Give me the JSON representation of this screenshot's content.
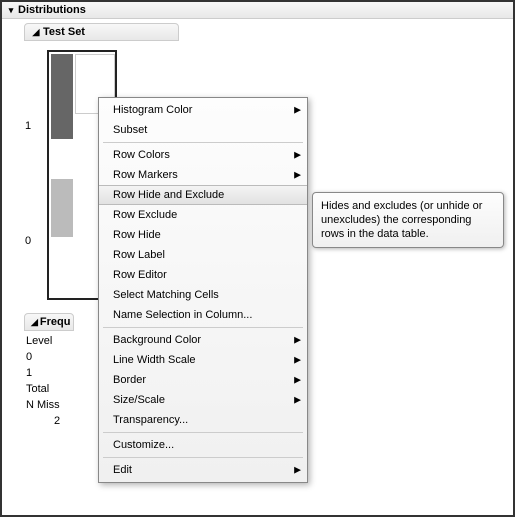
{
  "panel": {
    "title": "Distributions",
    "sub_title": "Test Set"
  },
  "chart": {
    "y_labels": [
      "1",
      "0"
    ],
    "bar_color_top": "#666666",
    "bar_color_selected": "#bbbbbb",
    "border_color": "#222222"
  },
  "freq": {
    "header": "Frequ",
    "level_label": "Level",
    "rows": [
      "0",
      "1",
      "Total",
      "N Miss"
    ],
    "value": "2"
  },
  "menu": {
    "items": [
      {
        "label": "Histogram Color",
        "sub": true
      },
      {
        "label": "Subset"
      },
      {
        "sep": true
      },
      {
        "label": "Row Colors",
        "sub": true
      },
      {
        "label": "Row Markers",
        "sub": true
      },
      {
        "label": "Row Hide and Exclude",
        "highlight": true
      },
      {
        "label": "Row Exclude"
      },
      {
        "label": "Row Hide"
      },
      {
        "label": "Row Label"
      },
      {
        "label": "Row Editor"
      },
      {
        "label": "Select Matching Cells"
      },
      {
        "label": "Name Selection in Column..."
      },
      {
        "sep": true
      },
      {
        "label": "Background Color",
        "sub": true
      },
      {
        "label": "Line Width Scale",
        "sub": true
      },
      {
        "label": "Border",
        "sub": true
      },
      {
        "label": "Size/Scale",
        "sub": true
      },
      {
        "label": "Transparency..."
      },
      {
        "sep": true
      },
      {
        "label": "Customize..."
      },
      {
        "sep": true
      },
      {
        "label": "Edit",
        "sub": true
      }
    ]
  },
  "tooltip": {
    "text": "Hides and excludes (or unhide or unexcludes) the corresponding rows in the data table."
  }
}
